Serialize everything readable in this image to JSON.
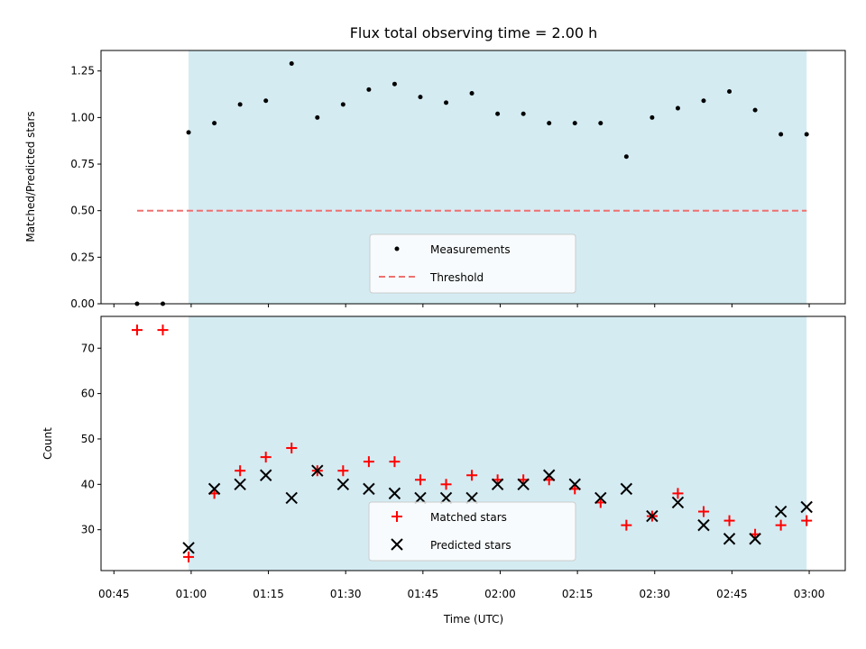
{
  "chart_data": [
    {
      "type": "scatter",
      "title": "Flux total observing time = 2.00 h",
      "xlabel": "",
      "ylabel": "Matched/Predicted stars",
      "ylim": [
        0,
        1.36
      ],
      "yticks": [
        "0.00",
        "0.25",
        "0.50",
        "0.75",
        "1.00",
        "1.25"
      ],
      "shaded_span_minutes": [
        59.5,
        179.5
      ],
      "shade_color": "#d4ebf2",
      "x_minutes": [
        49.5,
        54.5,
        59.5,
        64.5,
        69.5,
        74.5,
        79.5,
        84.5,
        89.5,
        94.5,
        99.5,
        104.5,
        109.5,
        114.5,
        119.5,
        124.5,
        129.5,
        134.5,
        139.5,
        144.5,
        149.5,
        154.5,
        159.5,
        164.5,
        169.5,
        174.5,
        179.5
      ],
      "series": [
        {
          "name": "Measurements",
          "color": "#000000",
          "marker": "dot",
          "values": [
            0.0,
            0.0,
            0.92,
            0.97,
            1.07,
            1.09,
            1.29,
            1.0,
            1.07,
            1.15,
            1.18,
            1.11,
            1.08,
            1.13,
            1.02,
            1.02,
            0.97,
            0.97,
            0.97,
            0.79,
            1.0,
            1.05,
            1.09,
            1.14,
            1.04,
            0.91,
            0.91
          ]
        },
        {
          "name": "Threshold",
          "color": "#f07070",
          "marker": "dashed-line",
          "x_range_minutes": [
            49.5,
            179.5
          ],
          "value": 0.5
        }
      ],
      "legend_position": "bottom-center"
    },
    {
      "type": "scatter",
      "title": "",
      "xlabel": "Time (UTC)",
      "ylabel": "Count",
      "ylim": [
        21,
        77
      ],
      "yticks": [
        "30",
        "40",
        "50",
        "60",
        "70"
      ],
      "xlim_minutes": [
        42.5,
        187
      ],
      "xticks": [
        "00:45",
        "01:00",
        "01:15",
        "01:30",
        "01:45",
        "02:00",
        "02:15",
        "02:30",
        "02:45",
        "03:00"
      ],
      "xtick_minutes": [
        45,
        60,
        75,
        90,
        105,
        120,
        135,
        150,
        165,
        180
      ],
      "shaded_span_minutes": [
        59.5,
        179.5
      ],
      "x_minutes": [
        49.5,
        54.5,
        59.5,
        64.5,
        69.5,
        74.5,
        79.5,
        84.5,
        89.5,
        94.5,
        99.5,
        104.5,
        109.5,
        114.5,
        119.5,
        124.5,
        129.5,
        134.5,
        139.5,
        144.5,
        149.5,
        154.5,
        159.5,
        164.5,
        169.5,
        174.5,
        179.5
      ],
      "series": [
        {
          "name": "Matched stars",
          "color": "#ff0000",
          "marker": "plus",
          "values": [
            74,
            74,
            24,
            38,
            43,
            46,
            48,
            43,
            43,
            45,
            45,
            41,
            40,
            42,
            41,
            41,
            41,
            39,
            36,
            31,
            33,
            38,
            34,
            32,
            29,
            31,
            32
          ]
        },
        {
          "name": "Predicted stars",
          "color": "#000000",
          "marker": "x",
          "values": [
            null,
            null,
            26,
            39,
            40,
            42,
            37,
            43,
            40,
            39,
            38,
            37,
            37,
            37,
            40,
            40,
            42,
            40,
            37,
            39,
            33,
            36,
            31,
            28,
            28,
            34,
            35
          ]
        }
      ],
      "legend_position": "bottom-center"
    }
  ]
}
